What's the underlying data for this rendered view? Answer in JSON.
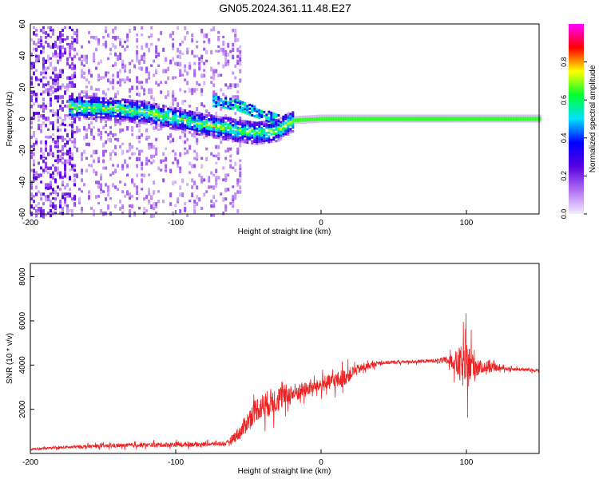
{
  "figure": {
    "title": "GN05.2024.361.11.48.E27"
  },
  "chart_data": [
    {
      "type": "heatmap",
      "xlabel": "Height of straight line (km)",
      "ylabel": "Frequency (Hz)",
      "xlim": [
        -200,
        150
      ],
      "ylim": [
        -60,
        60
      ],
      "xticks": [
        -200,
        -100,
        0,
        100
      ],
      "yticks": [
        -60,
        -40,
        -20,
        0,
        20,
        40,
        60
      ],
      "colorbar": {
        "label": "Normalized spectral amplitude",
        "ticks": [
          "0.0",
          "0.2",
          "0.4",
          "0.6",
          "0.8"
        ],
        "range": [
          0,
          1
        ],
        "colors": [
          "#f4ecff",
          "#b070f0",
          "#5a00e0",
          "#0000ff",
          "#00e0ff",
          "#00ff30",
          "#ffff00",
          "#ff0000",
          "#ff00ff"
        ]
      },
      "band": {
        "x": [
          -175,
          -160,
          -140,
          -120,
          -100,
          -80,
          -60,
          -45,
          -30,
          -20,
          0,
          10,
          30,
          50,
          70,
          90,
          100,
          110,
          130,
          150
        ],
        "y": [
          8,
          8,
          7,
          5,
          1,
          -3,
          -6,
          -8,
          -6,
          0,
          1,
          1,
          1,
          1,
          1,
          1,
          1,
          1,
          1,
          1
        ]
      },
      "secondary_band": {
        "x": [
          -75,
          -60,
          -45,
          -30
        ],
        "y": [
          12,
          10,
          5,
          0
        ]
      },
      "grid": false
    },
    {
      "type": "line",
      "xlabel": "Height of straight line (km)",
      "ylabel": "SNR (10 * v/v)",
      "xlim": [
        -200,
        150
      ],
      "ylim": [
        0,
        8600
      ],
      "xticks": [
        -200,
        -100,
        0,
        100
      ],
      "yticks": [
        2000,
        4000,
        6000,
        8000
      ],
      "color": "#ee2222",
      "envelope": {
        "x": [
          -200,
          -180,
          -160,
          -140,
          -120,
          -100,
          -80,
          -65,
          -55,
          -45,
          -35,
          -25,
          -15,
          -5,
          5,
          15,
          25,
          40,
          60,
          80,
          90,
          95,
          100,
          105,
          110,
          125,
          150
        ],
        "base": [
          200,
          260,
          320,
          350,
          380,
          400,
          420,
          450,
          1000,
          2000,
          2300,
          2600,
          2800,
          3000,
          3200,
          3400,
          3800,
          4100,
          4150,
          4200,
          4200,
          4000,
          3900,
          4000,
          3900,
          3850,
          3750
        ],
        "amp": [
          100,
          120,
          180,
          200,
          220,
          260,
          200,
          220,
          800,
          1200,
          1400,
          1200,
          900,
          600,
          800,
          900,
          500,
          200,
          150,
          200,
          600,
          1800,
          2500,
          1800,
          600,
          200,
          150
        ]
      },
      "grid": false
    }
  ]
}
